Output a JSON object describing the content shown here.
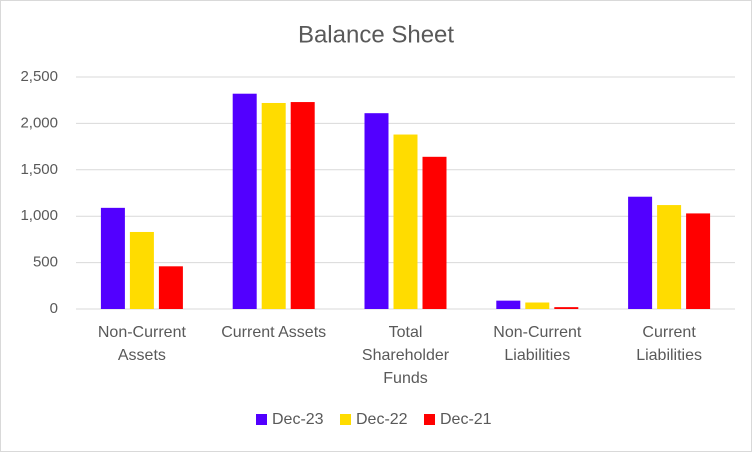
{
  "chart_data": {
    "type": "bar",
    "title": "Balance Sheet",
    "categories": [
      "Non-Current Assets",
      "Current Assets",
      "Total Shareholder Funds",
      "Non-Current Liabilities",
      "Current Liabilities"
    ],
    "series": [
      {
        "name": "Dec-23",
        "color": "#5200ff",
        "values": [
          1090,
          2320,
          2110,
          90,
          1210
        ]
      },
      {
        "name": "Dec-22",
        "color": "#ffdc00",
        "values": [
          830,
          2220,
          1880,
          70,
          1120
        ]
      },
      {
        "name": "Dec-21",
        "color": "#ff0000",
        "values": [
          460,
          2230,
          1640,
          20,
          1030
        ]
      }
    ],
    "ylim": [
      0,
      2500
    ],
    "yticks": [
      0,
      500,
      {
        "value": 1000,
        "label": "1,000"
      },
      {
        "value": 1500,
        "label": "1,500"
      },
      {
        "value": 2000,
        "label": "2,000"
      },
      {
        "value": 2500,
        "label": "2,500"
      }
    ],
    "grid": true,
    "legend": "bottom"
  }
}
